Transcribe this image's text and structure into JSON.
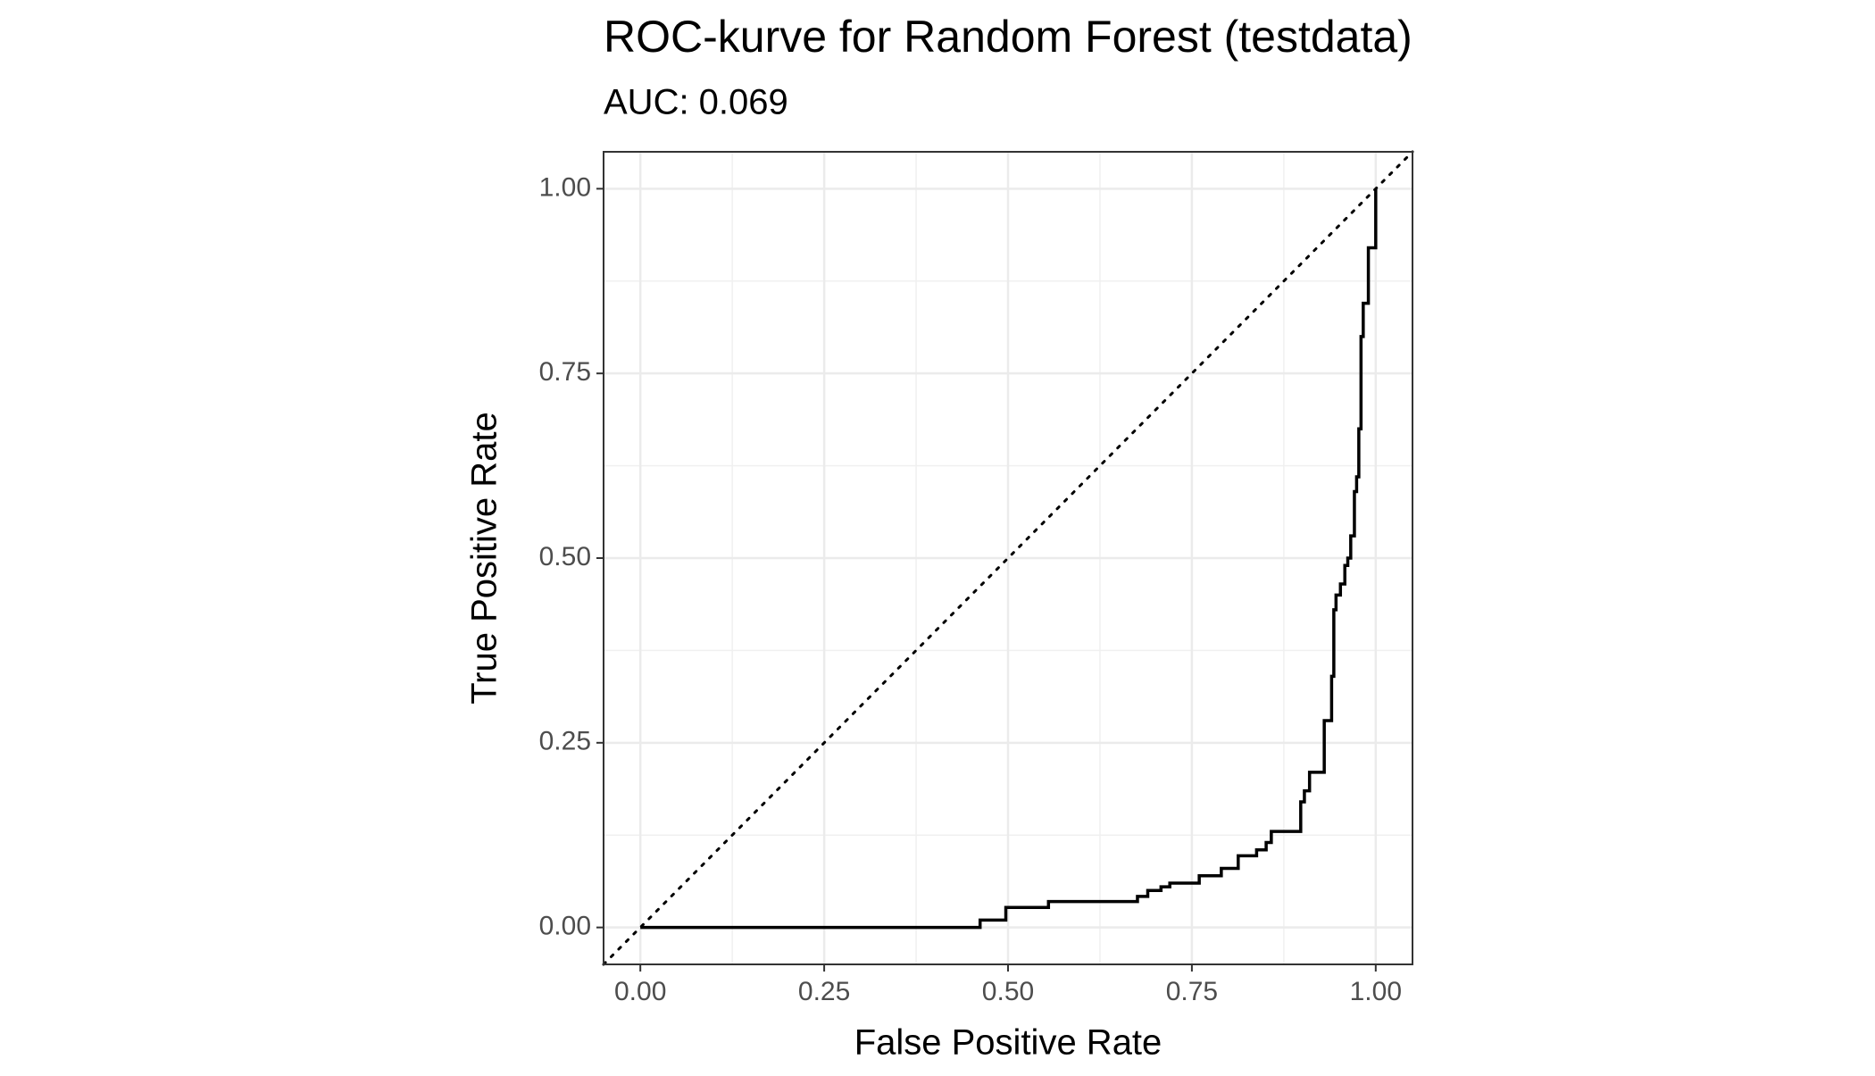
{
  "chart_data": {
    "type": "line",
    "title": "ROC-kurve for Random Forest (testdata)",
    "subtitle": "AUC: 0.069",
    "xlabel": "False Positive Rate",
    "ylabel": "True Positive Rate",
    "xlim": [
      -0.05,
      1.05
    ],
    "ylim": [
      -0.05,
      1.05
    ],
    "xticks": [
      {
        "value": 0,
        "label": "0.00"
      },
      {
        "value": 0.25,
        "label": "0.25"
      },
      {
        "value": 0.5,
        "label": "0.50"
      },
      {
        "value": 0.75,
        "label": "0.75"
      },
      {
        "value": 1,
        "label": "1.00"
      }
    ],
    "yticks": [
      {
        "value": 0,
        "label": "0.00"
      },
      {
        "value": 0.25,
        "label": "0.25"
      },
      {
        "value": 0.5,
        "label": "0.50"
      },
      {
        "value": 0.75,
        "label": "0.75"
      },
      {
        "value": 1,
        "label": "1.00"
      }
    ],
    "xminor": [
      0.125,
      0.375,
      0.625,
      0.875
    ],
    "yminor": [
      0.125,
      0.375,
      0.625,
      0.875
    ],
    "grid": true,
    "series": [
      {
        "color": "#000000",
        "x": [
          0,
          0.462,
          0.462,
          0.497,
          0.497,
          0.555,
          0.555,
          0.676,
          0.676,
          0.69,
          0.69,
          0.708,
          0.708,
          0.72,
          0.72,
          0.76,
          0.76,
          0.79,
          0.79,
          0.813,
          0.813,
          0.838,
          0.838,
          0.851,
          0.851,
          0.858,
          0.858,
          0.898,
          0.898,
          0.903,
          0.903,
          0.91,
          0.91,
          0.93,
          0.93,
          0.94,
          0.94,
          0.943,
          0.943,
          0.946,
          0.946,
          0.952,
          0.952,
          0.958,
          0.958,
          0.962,
          0.962,
          0.966,
          0.966,
          0.971,
          0.971,
          0.974,
          0.974,
          0.977,
          0.977,
          0.98,
          0.98,
          0.983,
          0.983,
          0.99,
          0.99,
          1,
          1
        ],
        "values": [
          0,
          0,
          0.01,
          0.01,
          0.027,
          0.027,
          0.035,
          0.035,
          0.042,
          0.042,
          0.05,
          0.05,
          0.055,
          0.055,
          0.06,
          0.06,
          0.07,
          0.07,
          0.08,
          0.08,
          0.097,
          0.097,
          0.105,
          0.105,
          0.115,
          0.115,
          0.13,
          0.13,
          0.17,
          0.17,
          0.185,
          0.185,
          0.21,
          0.21,
          0.28,
          0.28,
          0.34,
          0.34,
          0.43,
          0.43,
          0.45,
          0.45,
          0.465,
          0.465,
          0.49,
          0.49,
          0.5,
          0.5,
          0.53,
          0.53,
          0.59,
          0.59,
          0.61,
          0.61,
          0.675,
          0.675,
          0.8,
          0.8,
          0.845,
          0.845,
          0.92,
          0.92,
          1
        ]
      }
    ]
  }
}
